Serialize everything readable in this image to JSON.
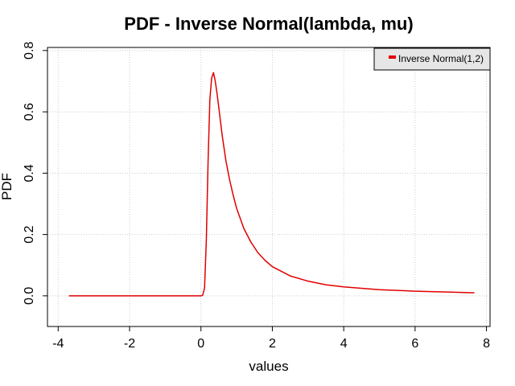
{
  "chart_data": {
    "type": "line",
    "title": "PDF - Inverse Normal(lambda, mu)",
    "xlabel": "values",
    "ylabel": "PDF",
    "xlim": [
      -4.3,
      8.1
    ],
    "ylim": [
      -0.1,
      0.81
    ],
    "x_ticks": [
      "-4",
      "-2",
      "0",
      "2",
      "4",
      "6",
      "8"
    ],
    "x_tick_values": [
      -4,
      -2,
      0,
      2,
      4,
      6,
      8
    ],
    "y_ticks": [
      "0.0",
      "0.2",
      "0.4",
      "0.6",
      "0.8"
    ],
    "y_tick_values": [
      0.0,
      0.2,
      0.4,
      0.6,
      0.8
    ],
    "grid": true,
    "legend_position": "top-right",
    "series": [
      {
        "name": "Inverse Normal(1,2)",
        "color": "#e00000",
        "x": [
          -3.7,
          -2.0,
          0.0,
          0.05,
          0.1,
          0.15,
          0.2,
          0.25,
          0.3,
          0.35,
          0.4,
          0.45,
          0.5,
          0.6,
          0.7,
          0.8,
          0.9,
          1.0,
          1.2,
          1.4,
          1.6,
          1.8,
          2.0,
          2.5,
          3.0,
          3.5,
          4.0,
          5.0,
          6.0,
          7.0,
          7.66
        ],
        "y": [
          0.0,
          0.0,
          0.0,
          0.002,
          0.025,
          0.18,
          0.44,
          0.64,
          0.71,
          0.728,
          0.7,
          0.66,
          0.614,
          0.52,
          0.44,
          0.38,
          0.33,
          0.285,
          0.22,
          0.175,
          0.14,
          0.115,
          0.095,
          0.065,
          0.048,
          0.036,
          0.029,
          0.02,
          0.015,
          0.012,
          0.01
        ]
      }
    ]
  }
}
